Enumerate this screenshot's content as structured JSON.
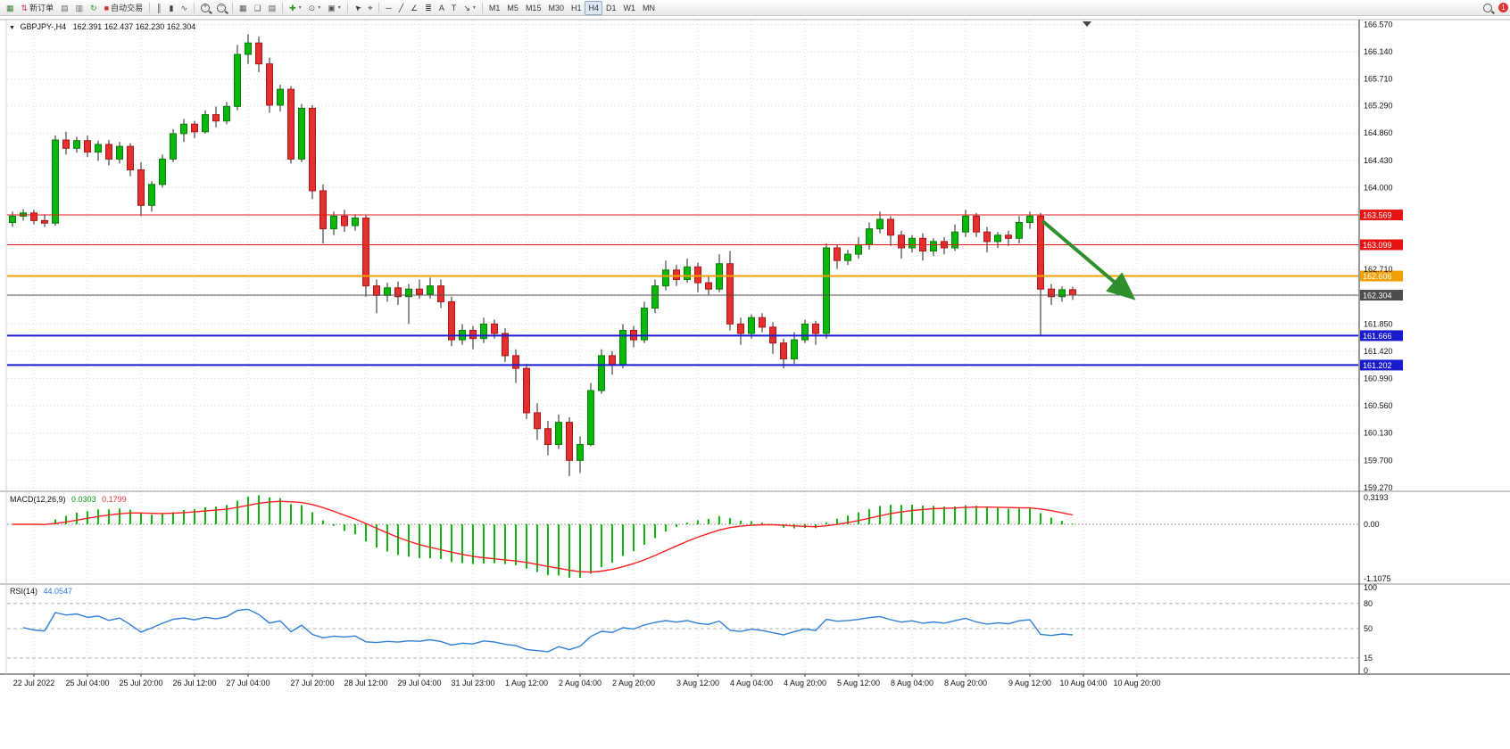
{
  "app": {
    "toolbar": {
      "notification_badge": "1",
      "groups": [
        {
          "name": "standard",
          "buttons": [
            {
              "name": "new-chart-button",
              "glyph": "▦",
              "color": "#3a7d3a"
            },
            {
              "name": "new-order-button",
              "label": "新订单",
              "glyph": "⇅",
              "color": "#c03030"
            },
            {
              "name": "chart-profiles-button",
              "glyph": "▤",
              "color": "#666666"
            },
            {
              "name": "market-watch-button",
              "glyph": "▥",
              "color": "#666666"
            },
            {
              "name": "refresh-button",
              "glyph": "↻",
              "color": "#2e8b2e"
            },
            {
              "name": "auto-trading-button",
              "label": "自动交易",
              "glyph": "■",
              "color": "#d03030"
            }
          ]
        },
        {
          "name": "chart-type",
          "buttons": [
            {
              "name": "bar-chart-button",
              "glyph": "║",
              "color": "#444444"
            },
            {
              "name": "candlestick-chart-button",
              "glyph": "▮",
              "color": "#444444"
            },
            {
              "name": "line-chart-button",
              "glyph": "∿",
              "color": "#444444"
            }
          ]
        },
        {
          "name": "zoom",
          "buttons": [
            {
              "name": "zoom-in-button",
              "lens": "+"
            },
            {
              "name": "zoom-out-button",
              "lens": "−"
            }
          ]
        },
        {
          "name": "windows",
          "buttons": [
            {
              "name": "tile-windows-button",
              "glyph": "▦",
              "color": "#555555"
            },
            {
              "name": "cascade-windows-button",
              "glyph": "❏",
              "color": "#555555"
            },
            {
              "name": "arrange-windows-button",
              "glyph": "▤",
              "color": "#555555"
            }
          ]
        },
        {
          "name": "insert",
          "buttons": [
            {
              "name": "indicators-button",
              "glyph": "✚",
              "color": "#2e8b2e",
              "dropdown": true
            },
            {
              "name": "periods-button",
              "glyph": "⊙",
              "color": "#555555",
              "dropdown": true
            },
            {
              "name": "templates-button",
              "glyph": "▣",
              "color": "#555555",
              "dropdown": true
            }
          ]
        },
        {
          "name": "pointer",
          "buttons": [
            {
              "name": "cursor-button",
              "glyph": "➤",
              "color": "#333333",
              "rotate": -135
            },
            {
              "name": "crosshair-button",
              "glyph": "⌖",
              "color": "#333333"
            }
          ]
        },
        {
          "name": "objects",
          "buttons": [
            {
              "name": "horizontal-line-button",
              "glyph": "─",
              "color": "#333333"
            },
            {
              "name": "trendline-button",
              "glyph": "╱",
              "color": "#333333"
            },
            {
              "name": "channel-button",
              "glyph": "∠",
              "color": "#333333"
            },
            {
              "name": "fibonacci-button",
              "glyph": "≣",
              "color": "#333333"
            },
            {
              "name": "text-button",
              "glyph": "A",
              "color": "#333333"
            },
            {
              "name": "label-button",
              "glyph": "T",
              "color": "#333333"
            },
            {
              "name": "arrows-button",
              "glyph": "↘",
              "color": "#333333",
              "dropdown": true
            }
          ]
        },
        {
          "name": "timeframes",
          "buttons": [
            {
              "name": "tf-m1-button",
              "label": "M1"
            },
            {
              "name": "tf-m5-button",
              "label": "M5"
            },
            {
              "name": "tf-m15-button",
              "label": "M15"
            },
            {
              "name": "tf-m30-button",
              "label": "M30"
            },
            {
              "name": "tf-h1-button",
              "label": "H1"
            },
            {
              "name": "tf-h4-button",
              "label": "H4",
              "active": true
            },
            {
              "name": "tf-d1-button",
              "label": "D1"
            },
            {
              "name": "tf-w1-button",
              "label": "W1"
            },
            {
              "name": "tf-mn-button",
              "label": "MN"
            }
          ]
        }
      ]
    }
  },
  "chart": {
    "collapse_icon": "▼",
    "symbol_title": "GBPJPY-,H4",
    "ohlc_text": "162.391 162.437 162.230 162.304",
    "macd_label": "MACD(12,26,9)",
    "macd_v1": "0.0303",
    "macd_v2": "0.1799",
    "rsi_label": "RSI(14)",
    "rsi_value": "44.0547"
  },
  "chart_data": {
    "type": "candlestick",
    "symbol": "GBPJPY-",
    "timeframe": "H4",
    "current_ohlc": {
      "open": 162.391,
      "high": 162.437,
      "low": 162.23,
      "close": 162.304
    },
    "price_range": {
      "max": 166.62,
      "min": 159.24
    },
    "candles": [
      [
        163.45,
        163.62,
        163.38,
        163.55
      ],
      [
        163.55,
        163.66,
        163.48,
        163.6
      ],
      [
        163.6,
        163.65,
        163.42,
        163.48
      ],
      [
        163.48,
        163.58,
        163.38,
        163.44
      ],
      [
        163.44,
        164.82,
        163.4,
        164.75
      ],
      [
        164.75,
        164.88,
        164.52,
        164.62
      ],
      [
        164.62,
        164.8,
        164.55,
        164.74
      ],
      [
        164.74,
        164.82,
        164.48,
        164.56
      ],
      [
        164.56,
        164.74,
        164.42,
        164.68
      ],
      [
        164.68,
        164.75,
        164.35,
        164.45
      ],
      [
        164.45,
        164.72,
        164.38,
        164.65
      ],
      [
        164.65,
        164.7,
        164.18,
        164.28
      ],
      [
        164.28,
        164.4,
        163.55,
        163.72
      ],
      [
        163.72,
        164.1,
        163.62,
        164.05
      ],
      [
        164.05,
        164.52,
        164.0,
        164.45
      ],
      [
        164.45,
        164.92,
        164.4,
        164.85
      ],
      [
        164.85,
        165.08,
        164.72,
        165.0
      ],
      [
        165.0,
        165.05,
        164.78,
        164.88
      ],
      [
        164.88,
        165.22,
        164.85,
        165.15
      ],
      [
        165.15,
        165.28,
        164.95,
        165.05
      ],
      [
        165.05,
        165.35,
        165.0,
        165.28
      ],
      [
        165.28,
        166.25,
        165.22,
        166.1
      ],
      [
        166.1,
        166.42,
        165.95,
        166.28
      ],
      [
        166.28,
        166.38,
        165.82,
        165.95
      ],
      [
        165.95,
        166.05,
        165.18,
        165.3
      ],
      [
        165.3,
        165.62,
        165.2,
        165.55
      ],
      [
        165.55,
        165.6,
        164.38,
        164.45
      ],
      [
        164.45,
        165.32,
        164.4,
        165.25
      ],
      [
        165.25,
        165.3,
        163.82,
        163.95
      ],
      [
        163.95,
        164.05,
        163.12,
        163.35
      ],
      [
        163.35,
        163.62,
        163.25,
        163.55
      ],
      [
        163.55,
        163.65,
        163.3,
        163.4
      ],
      [
        163.4,
        163.58,
        163.32,
        163.52
      ],
      [
        163.52,
        163.56,
        162.28,
        162.45
      ],
      [
        162.45,
        162.55,
        162.02,
        162.3
      ],
      [
        162.3,
        162.5,
        162.2,
        162.42
      ],
      [
        162.42,
        162.52,
        162.15,
        162.28
      ],
      [
        162.28,
        162.48,
        161.85,
        162.4
      ],
      [
        162.4,
        162.55,
        162.25,
        162.32
      ],
      [
        162.32,
        162.58,
        162.25,
        162.45
      ],
      [
        162.45,
        162.55,
        162.1,
        162.2
      ],
      [
        162.2,
        162.28,
        161.5,
        161.6
      ],
      [
        161.6,
        161.85,
        161.52,
        161.75
      ],
      [
        161.75,
        161.82,
        161.45,
        161.62
      ],
      [
        161.62,
        161.95,
        161.55,
        161.85
      ],
      [
        161.85,
        161.92,
        161.62,
        161.7
      ],
      [
        161.7,
        161.78,
        161.25,
        161.35
      ],
      [
        161.35,
        161.45,
        160.92,
        161.15
      ],
      [
        161.15,
        161.22,
        160.35,
        160.45
      ],
      [
        160.45,
        160.6,
        160.02,
        160.2
      ],
      [
        160.2,
        160.32,
        159.78,
        159.95
      ],
      [
        159.95,
        160.42,
        159.88,
        160.3
      ],
      [
        160.3,
        160.38,
        159.45,
        159.7
      ],
      [
        159.7,
        160.08,
        159.5,
        159.95
      ],
      [
        159.95,
        160.92,
        159.92,
        160.8
      ],
      [
        160.8,
        161.45,
        160.75,
        161.35
      ],
      [
        161.35,
        161.42,
        161.05,
        161.2
      ],
      [
        161.2,
        161.85,
        161.15,
        161.75
      ],
      [
        161.75,
        161.82,
        161.48,
        161.6
      ],
      [
        161.6,
        162.2,
        161.55,
        162.1
      ],
      [
        162.1,
        162.55,
        162.02,
        162.45
      ],
      [
        162.45,
        162.85,
        162.38,
        162.7
      ],
      [
        162.7,
        162.78,
        162.45,
        162.55
      ],
      [
        162.55,
        162.88,
        162.5,
        162.75
      ],
      [
        162.75,
        162.82,
        162.35,
        162.5
      ],
      [
        162.5,
        162.62,
        162.3,
        162.4
      ],
      [
        162.4,
        162.95,
        162.35,
        162.8
      ],
      [
        162.8,
        163.0,
        161.75,
        161.85
      ],
      [
        161.85,
        161.95,
        161.52,
        161.7
      ],
      [
        161.7,
        162.0,
        161.62,
        161.95
      ],
      [
        161.95,
        162.02,
        161.72,
        161.8
      ],
      [
        161.8,
        161.88,
        161.38,
        161.55
      ],
      [
        161.55,
        161.62,
        161.15,
        161.3
      ],
      [
        161.3,
        161.72,
        161.22,
        161.6
      ],
      [
        161.6,
        161.92,
        161.55,
        161.85
      ],
      [
        161.85,
        161.9,
        161.52,
        161.7
      ],
      [
        161.7,
        163.12,
        161.62,
        163.05
      ],
      [
        163.05,
        163.1,
        162.72,
        162.85
      ],
      [
        162.85,
        163.02,
        162.78,
        162.95
      ],
      [
        162.95,
        163.22,
        162.88,
        163.1
      ],
      [
        163.1,
        163.45,
        163.02,
        163.35
      ],
      [
        163.35,
        163.62,
        163.28,
        163.5
      ],
      [
        163.5,
        163.55,
        163.08,
        163.25
      ],
      [
        163.25,
        163.32,
        162.88,
        163.05
      ],
      [
        163.05,
        163.25,
        162.98,
        163.2
      ],
      [
        163.2,
        163.28,
        162.85,
        163.0
      ],
      [
        163.0,
        163.2,
        162.92,
        163.15
      ],
      [
        163.15,
        163.22,
        162.95,
        163.05
      ],
      [
        163.05,
        163.42,
        163.0,
        163.3
      ],
      [
        163.3,
        163.65,
        163.22,
        163.55
      ],
      [
        163.55,
        163.6,
        163.22,
        163.3
      ],
      [
        163.3,
        163.38,
        162.98,
        163.15
      ],
      [
        163.15,
        163.3,
        163.05,
        163.25
      ],
      [
        163.25,
        163.32,
        163.08,
        163.2
      ],
      [
        163.2,
        163.55,
        163.12,
        163.45
      ],
      [
        163.45,
        163.62,
        163.35,
        163.55
      ],
      [
        163.55,
        163.6,
        161.67,
        162.4
      ],
      [
        162.4,
        162.48,
        162.15,
        162.28
      ],
      [
        162.28,
        162.44,
        162.2,
        162.39
      ],
      [
        162.391,
        162.437,
        162.23,
        162.304
      ]
    ],
    "price_axis_labels": [
      "166.570",
      "166.140",
      "165.710",
      "165.290",
      "164.860",
      "164.430",
      "164.000",
      "162.710",
      "161.850",
      "161.420",
      "160.990",
      "160.560",
      "160.130",
      "159.700",
      "159.270"
    ],
    "grid_prices_hidden": [
      163.57,
      163.14,
      162.28
    ],
    "hlines": [
      {
        "price": 163.569,
        "label": "163.569",
        "color": "#e81414",
        "width": 1
      },
      {
        "price": 163.099,
        "label": "163.099",
        "color": "#e81414",
        "width": 1
      },
      {
        "price": 162.606,
        "label": "162.606",
        "color": "#f0a000",
        "width": 2
      },
      {
        "price": 162.304,
        "label": "162.304",
        "color": "#4d4d4d",
        "width": 1
      },
      {
        "price": 161.666,
        "label": "161.666",
        "color": "#1a1acd",
        "width": 2
      },
      {
        "price": 161.202,
        "label": "161.202",
        "color": "#1a1acd",
        "width": 2
      }
    ],
    "time_labels": [
      {
        "text": "22 Jul 2022",
        "bar": 2
      },
      {
        "text": "25 Jul 04:00",
        "bar": 7
      },
      {
        "text": "25 Jul 20:00",
        "bar": 12
      },
      {
        "text": "26 Jul 12:00",
        "bar": 17
      },
      {
        "text": "27 Jul 04:00",
        "bar": 22
      },
      {
        "text": "27 Jul 20:00",
        "bar": 28
      },
      {
        "text": "28 Jul 12:00",
        "bar": 33
      },
      {
        "text": "29 Jul 04:00",
        "bar": 38
      },
      {
        "text": "31 Jul 23:00",
        "bar": 43
      },
      {
        "text": "1 Aug 12:00",
        "bar": 48
      },
      {
        "text": "2 Aug 04:00",
        "bar": 53
      },
      {
        "text": "2 Aug 20:00",
        "bar": 58
      },
      {
        "text": "3 Aug 12:00",
        "bar": 64
      },
      {
        "text": "4 Aug 04:00",
        "bar": 69
      },
      {
        "text": "4 Aug 20:00",
        "bar": 74
      },
      {
        "text": "5 Aug 12:00",
        "bar": 79
      },
      {
        "text": "8 Aug 04:00",
        "bar": 84
      },
      {
        "text": "8 Aug 20:00",
        "bar": 89
      },
      {
        "text": "9 Aug 12:00",
        "bar": 95
      },
      {
        "text": "10 Aug 04:00",
        "bar": 100
      },
      {
        "text": "10 Aug 20:00",
        "bar": 105
      }
    ],
    "macd": {
      "params": [
        12,
        26,
        9
      ],
      "current_values": [
        0.0303,
        0.1799
      ],
      "axis_labels": [
        "0.3193",
        "0.00",
        "-1.1075"
      ]
    },
    "rsi": {
      "period": 14,
      "current_value": 44.0547,
      "levels": [
        80,
        50,
        15
      ],
      "axis_labels": [
        "100",
        "80",
        "50",
        "15",
        "0"
      ]
    },
    "annotation_arrow": {
      "from": {
        "bar": 96.2,
        "price": 163.47
      },
      "to": {
        "bar": 104.5,
        "price": 162.28
      },
      "color": "#2f8f2f"
    },
    "colors": {
      "candle_up": "#0db80d",
      "candle_up_border": "#0a7a0a",
      "candle_down": "#e63030",
      "candle_down_border": "#a81616",
      "wick": "#222222",
      "macd_hist": "#0db80d",
      "macd_signal": "#ff1e1e",
      "rsi_line": "#2f7ed8",
      "grid": "#d9d9d9",
      "arrow": "#2f8f2f"
    }
  }
}
